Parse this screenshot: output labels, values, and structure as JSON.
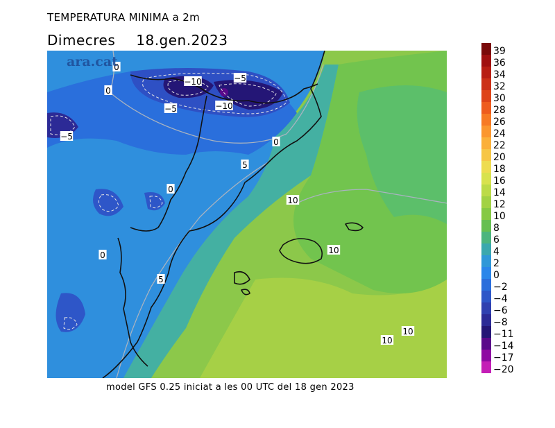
{
  "header": {
    "title": "TEMPERATURA MINIMA a 2m",
    "day": "Dimecres",
    "date": "18.gen.2023"
  },
  "brand": "ara.cat",
  "footer": "model GFS 0.25 iniciat a les 00 UTC del 18 gen 2023",
  "legend": {
    "labels": [
      "39",
      "36",
      "34",
      "32",
      "30",
      "28",
      "26",
      "24",
      "22",
      "20",
      "18",
      "16",
      "14",
      "12",
      "10",
      "8",
      "6",
      "4",
      "2",
      "0",
      "−2",
      "−4",
      "−6",
      "−8",
      "−11",
      "−14",
      "−17",
      "−20"
    ],
    "colors": [
      "#7a0a0a",
      "#a01010",
      "#b81e14",
      "#cc3018",
      "#de4418",
      "#ee5c1e",
      "#f77a24",
      "#fb962e",
      "#fbb03a",
      "#f7c646",
      "#eedc50",
      "#d8e24e",
      "#bcdb48",
      "#a2d244",
      "#86c944",
      "#66bf52",
      "#4cb57e",
      "#3aa8ae",
      "#2f98d8",
      "#2a86ea",
      "#2a6edc",
      "#2e56c8",
      "#3040b0",
      "#2c2a96",
      "#241676",
      "#5a0a8a",
      "#8e0aa2",
      "#c41eb6"
    ]
  },
  "contour_labels": [
    {
      "text": "−10"
    },
    {
      "text": "−5"
    },
    {
      "text": "−5"
    },
    {
      "text": "−10"
    },
    {
      "text": "−5"
    },
    {
      "text": "0"
    },
    {
      "text": "0"
    },
    {
      "text": "5"
    },
    {
      "text": "0"
    },
    {
      "text": "10"
    },
    {
      "text": "0"
    },
    {
      "text": "10"
    },
    {
      "text": "5"
    },
    {
      "text": "10"
    },
    {
      "text": "10"
    },
    {
      "text": "0"
    }
  ]
}
